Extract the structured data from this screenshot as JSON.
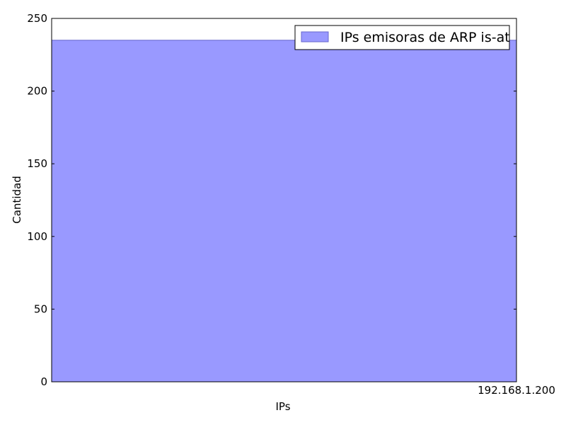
{
  "chart_data": {
    "type": "bar",
    "title": "",
    "xlabel": "IPs",
    "ylabel": "Cantidad",
    "categories": [
      "192.168.1.200"
    ],
    "series": [
      {
        "name": "IPs emisoras de ARP is-at",
        "values": [
          235
        ],
        "color": "#9999ff",
        "edge_color": "#6666cc"
      }
    ],
    "ylim": [
      0,
      250
    ],
    "yticks": [
      0,
      50,
      100,
      150,
      200,
      250
    ],
    "grid": false,
    "legend_position": "top-right"
  }
}
